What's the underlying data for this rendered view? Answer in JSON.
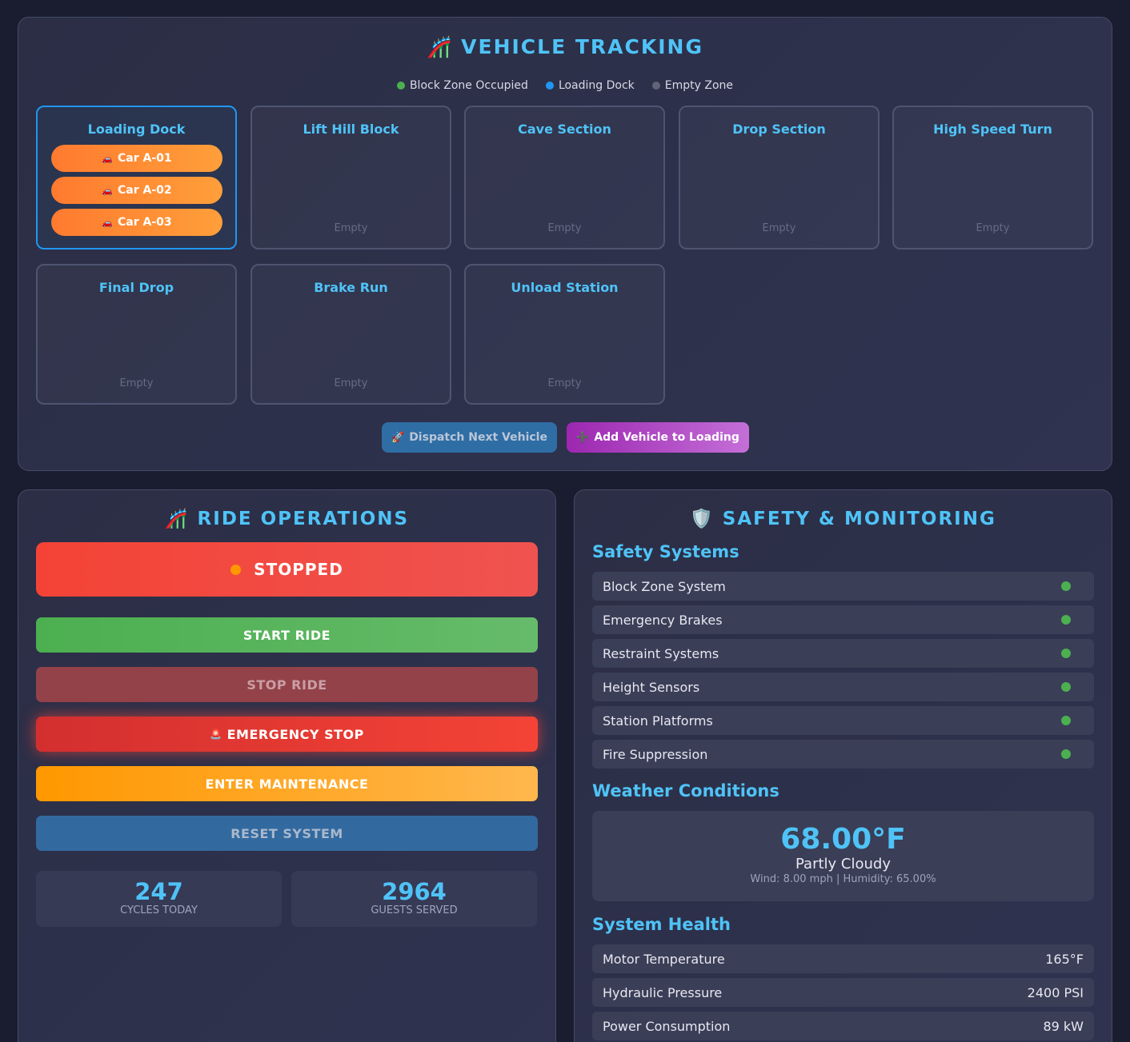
{
  "tracking": {
    "icon": "🎢",
    "title": "VEHICLE TRACKING",
    "legend": [
      {
        "label": "Block Zone Occupied",
        "color": "#4caf50"
      },
      {
        "label": "Loading Dock",
        "color": "#2196f3"
      },
      {
        "label": "Empty Zone",
        "color": "#5f6478"
      }
    ],
    "zones": [
      {
        "name": "Loading Dock",
        "cars": [
          "Car A-01",
          "Car A-02",
          "Car A-03"
        ],
        "empty_label": ""
      },
      {
        "name": "Lift Hill Block",
        "cars": [],
        "empty_label": "Empty"
      },
      {
        "name": "Cave Section",
        "cars": [],
        "empty_label": "Empty"
      },
      {
        "name": "Drop Section",
        "cars": [],
        "empty_label": "Empty"
      },
      {
        "name": "High Speed Turn",
        "cars": [],
        "empty_label": "Empty"
      },
      {
        "name": "Final Drop",
        "cars": [],
        "empty_label": "Empty"
      },
      {
        "name": "Brake Run",
        "cars": [],
        "empty_label": "Empty"
      },
      {
        "name": "Unload Station",
        "cars": [],
        "empty_label": "Empty"
      }
    ],
    "car_icon": "🚗",
    "dispatch_icon": "🚀",
    "dispatch_label": "Dispatch Next Vehicle",
    "add_icon": "➕",
    "add_label": "Add Vehicle to Loading"
  },
  "operations": {
    "icon": "🎢",
    "title": "RIDE OPERATIONS",
    "status": "STOPPED",
    "status_color": "#f44336",
    "start_label": "START RIDE",
    "stop_label": "STOP RIDE",
    "estop_icon": "🚨",
    "estop_label": "EMERGENCY STOP",
    "maintenance_label": "ENTER MAINTENANCE",
    "reset_label": "RESET SYSTEM",
    "stats": [
      {
        "value": "247",
        "label": "CYCLES TODAY"
      },
      {
        "value": "2964",
        "label": "GUESTS SERVED"
      }
    ]
  },
  "safety": {
    "icon": "🛡️",
    "title": "SAFETY & MONITORING",
    "systems_title": "Safety Systems",
    "systems": [
      {
        "name": "Block Zone System",
        "status_color": "#4caf50"
      },
      {
        "name": "Emergency Brakes",
        "status_color": "#4caf50"
      },
      {
        "name": "Restraint Systems",
        "status_color": "#4caf50"
      },
      {
        "name": "Height Sensors",
        "status_color": "#4caf50"
      },
      {
        "name": "Station Platforms",
        "status_color": "#4caf50"
      },
      {
        "name": "Fire Suppression",
        "status_color": "#4caf50"
      }
    ],
    "weather_title": "Weather Conditions",
    "weather": {
      "temperature": "68.00°F",
      "condition": "Partly Cloudy",
      "details": "Wind: 8.00 mph | Humidity: 65.00%"
    },
    "health_title": "System Health",
    "health": [
      {
        "name": "Motor Temperature",
        "value": "165°F"
      },
      {
        "name": "Hydraulic Pressure",
        "value": "2400 PSI"
      },
      {
        "name": "Power Consumption",
        "value": "89 kW"
      }
    ]
  }
}
